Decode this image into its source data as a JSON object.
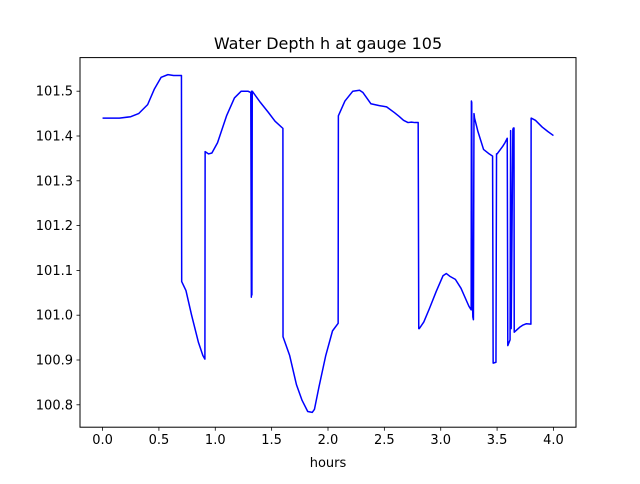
{
  "chart_data": {
    "type": "line",
    "title": "Water Depth h at gauge 105",
    "xlabel": "hours",
    "ylabel": "",
    "xlim": [
      -0.2,
      4.2
    ],
    "ylim": [
      100.75,
      101.575
    ],
    "xticks": [
      0.0,
      0.5,
      1.0,
      1.5,
      2.0,
      2.5,
      3.0,
      3.5,
      4.0
    ],
    "xtick_labels": [
      "0.0",
      "0.5",
      "1.0",
      "1.5",
      "2.0",
      "2.5",
      "3.0",
      "3.5",
      "4.0"
    ],
    "yticks": [
      100.8,
      100.9,
      101.0,
      101.1,
      101.2,
      101.3,
      101.4,
      101.5
    ],
    "ytick_labels": [
      "100.8",
      "100.9",
      "101.0",
      "101.1",
      "101.2",
      "101.3",
      "101.4",
      "101.5"
    ],
    "grid": false,
    "series": [
      {
        "color": "#0000ff",
        "x": [
          0.0,
          0.15,
          0.25,
          0.32,
          0.4,
          0.46,
          0.52,
          0.58,
          0.63,
          0.7,
          0.702,
          0.74,
          0.79,
          0.85,
          0.89,
          0.908,
          0.91,
          0.94,
          0.97,
          1.02,
          1.1,
          1.17,
          1.23,
          1.29,
          1.315,
          1.32,
          1.322,
          1.325,
          1.328,
          1.4,
          1.47,
          1.53,
          1.6,
          1.601,
          1.66,
          1.72,
          1.77,
          1.82,
          1.86,
          1.88,
          1.92,
          1.98,
          2.04,
          2.09,
          2.092,
          2.15,
          2.22,
          2.28,
          2.31,
          2.38,
          2.45,
          2.52,
          2.59,
          2.63,
          2.67,
          2.71,
          2.74,
          2.77,
          2.8,
          2.805,
          2.81,
          2.85,
          2.9,
          2.96,
          3.02,
          3.05,
          3.08,
          3.13,
          3.18,
          3.25,
          3.27,
          3.272,
          3.275,
          3.28,
          3.285,
          3.29,
          3.295,
          3.297,
          3.3,
          3.33,
          3.38,
          3.43,
          3.46,
          3.465,
          3.49,
          3.495,
          3.5,
          3.55,
          3.57,
          3.59,
          3.595,
          3.615,
          3.62,
          3.625,
          3.64,
          3.645,
          3.65,
          3.652,
          3.7,
          3.73,
          3.76,
          3.8,
          3.802,
          3.84,
          3.9,
          3.95,
          4.0
        ],
        "y": [
          101.44,
          101.44,
          101.443,
          101.45,
          101.47,
          101.505,
          101.531,
          101.537,
          101.535,
          101.535,
          101.075,
          101.055,
          101.0,
          100.94,
          100.91,
          100.902,
          101.365,
          101.36,
          101.362,
          101.385,
          101.445,
          101.485,
          101.5,
          101.5,
          101.497,
          101.04,
          101.5,
          101.045,
          101.5,
          101.475,
          101.453,
          101.433,
          101.417,
          100.952,
          100.91,
          100.845,
          100.81,
          100.785,
          100.783,
          100.79,
          100.84,
          100.91,
          100.965,
          100.982,
          101.445,
          101.478,
          101.5,
          101.502,
          101.497,
          101.472,
          101.468,
          101.465,
          101.452,
          101.444,
          101.435,
          101.43,
          101.431,
          101.43,
          101.43,
          100.97,
          100.97,
          100.985,
          101.015,
          101.053,
          101.088,
          101.093,
          101.087,
          101.08,
          101.06,
          101.02,
          101.012,
          101.478,
          101.475,
          101.04,
          100.996,
          100.99,
          101.45,
          101.447,
          101.44,
          101.41,
          101.37,
          101.36,
          101.355,
          100.893,
          100.895,
          101.36,
          101.36,
          101.377,
          101.385,
          101.395,
          100.932,
          100.945,
          101.412,
          100.97,
          101.415,
          101.418,
          101.418,
          100.962,
          100.973,
          100.978,
          100.981,
          100.98,
          101.44,
          101.435,
          101.42,
          101.41,
          101.401
        ]
      }
    ]
  }
}
